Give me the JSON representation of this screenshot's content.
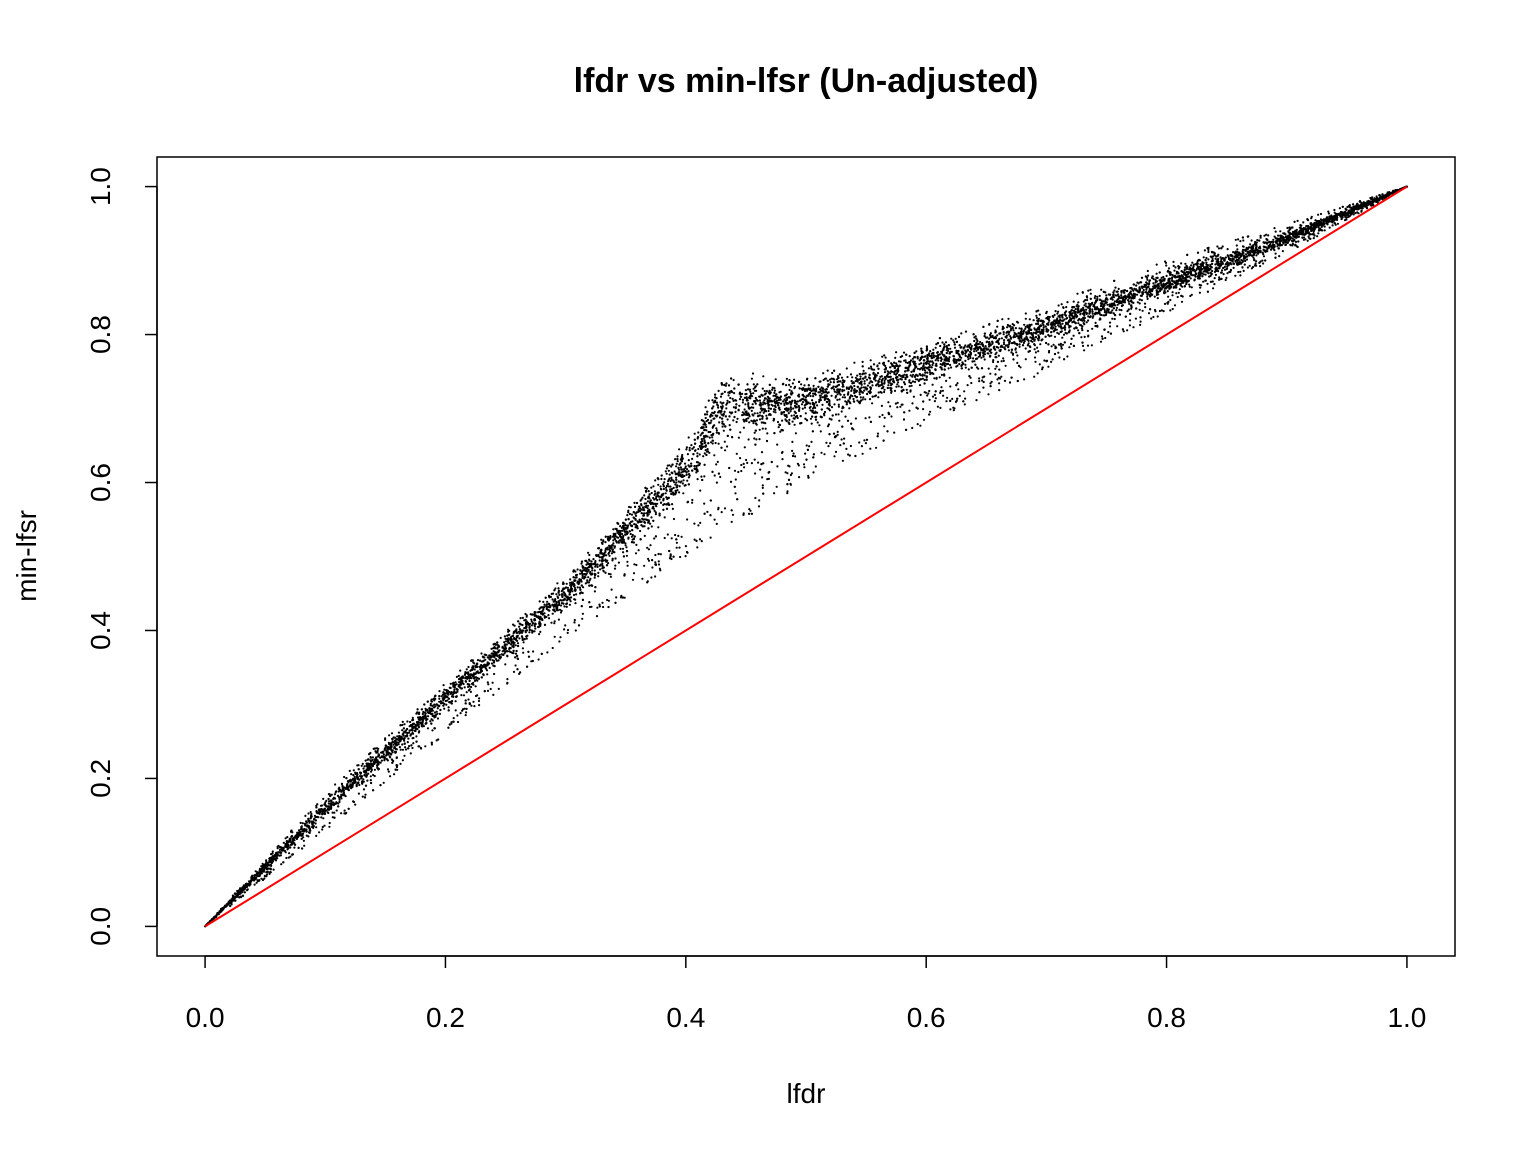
{
  "chart_data": {
    "type": "scatter",
    "title": "lfdr vs min-lfsr (Un-adjusted)",
    "xlabel": "lfdr",
    "ylabel": "min-lfsr",
    "xlim": [
      -0.04,
      1.04
    ],
    "ylim": [
      -0.04,
      1.04
    ],
    "x_ticks": [
      0.0,
      0.2,
      0.4,
      0.6,
      0.8,
      1.0
    ],
    "y_ticks": [
      0.0,
      0.2,
      0.4,
      0.6,
      0.8,
      1.0
    ],
    "x_tick_labels": [
      "0.0",
      "0.2",
      "0.4",
      "0.6",
      "0.8",
      "1.0"
    ],
    "y_tick_labels": [
      "0.0",
      "0.2",
      "0.4",
      "0.6",
      "0.8",
      "1.0"
    ],
    "grid": false,
    "point_color": "#000000",
    "series": [
      {
        "marker": "dot",
        "color": "#000000",
        "trend": [
          [
            0.0,
            0.0
          ],
          [
            0.1,
            0.16
          ],
          [
            0.2,
            0.31
          ],
          [
            0.3,
            0.45
          ],
          [
            0.4,
            0.62
          ],
          [
            0.43,
            0.7
          ],
          [
            0.5,
            0.71
          ],
          [
            0.6,
            0.76
          ],
          [
            0.7,
            0.81
          ],
          [
            0.8,
            0.87
          ],
          [
            0.9,
            0.93
          ],
          [
            1.0,
            1.0
          ]
        ],
        "upper_edge": [
          [
            0.0,
            0.0
          ],
          [
            0.1,
            0.18
          ],
          [
            0.2,
            0.33
          ],
          [
            0.3,
            0.47
          ],
          [
            0.4,
            0.65
          ],
          [
            0.43,
            0.72
          ],
          [
            0.5,
            0.74
          ],
          [
            0.6,
            0.79
          ],
          [
            0.7,
            0.84
          ],
          [
            0.8,
            0.9
          ],
          [
            0.9,
            0.95
          ],
          [
            1.0,
            1.0
          ]
        ],
        "lower_edge": [
          [
            0.0,
            0.0
          ],
          [
            0.1,
            0.13
          ],
          [
            0.2,
            0.26
          ],
          [
            0.3,
            0.39
          ],
          [
            0.4,
            0.5
          ],
          [
            0.5,
            0.6
          ],
          [
            0.6,
            0.68
          ],
          [
            0.7,
            0.75
          ],
          [
            0.8,
            0.83
          ],
          [
            0.9,
            0.91
          ],
          [
            1.0,
            1.0
          ]
        ]
      },
      {
        "type": "line",
        "color": "#ff0000",
        "x": [
          0.0,
          1.0
        ],
        "y": [
          0.0,
          1.0
        ]
      }
    ]
  }
}
